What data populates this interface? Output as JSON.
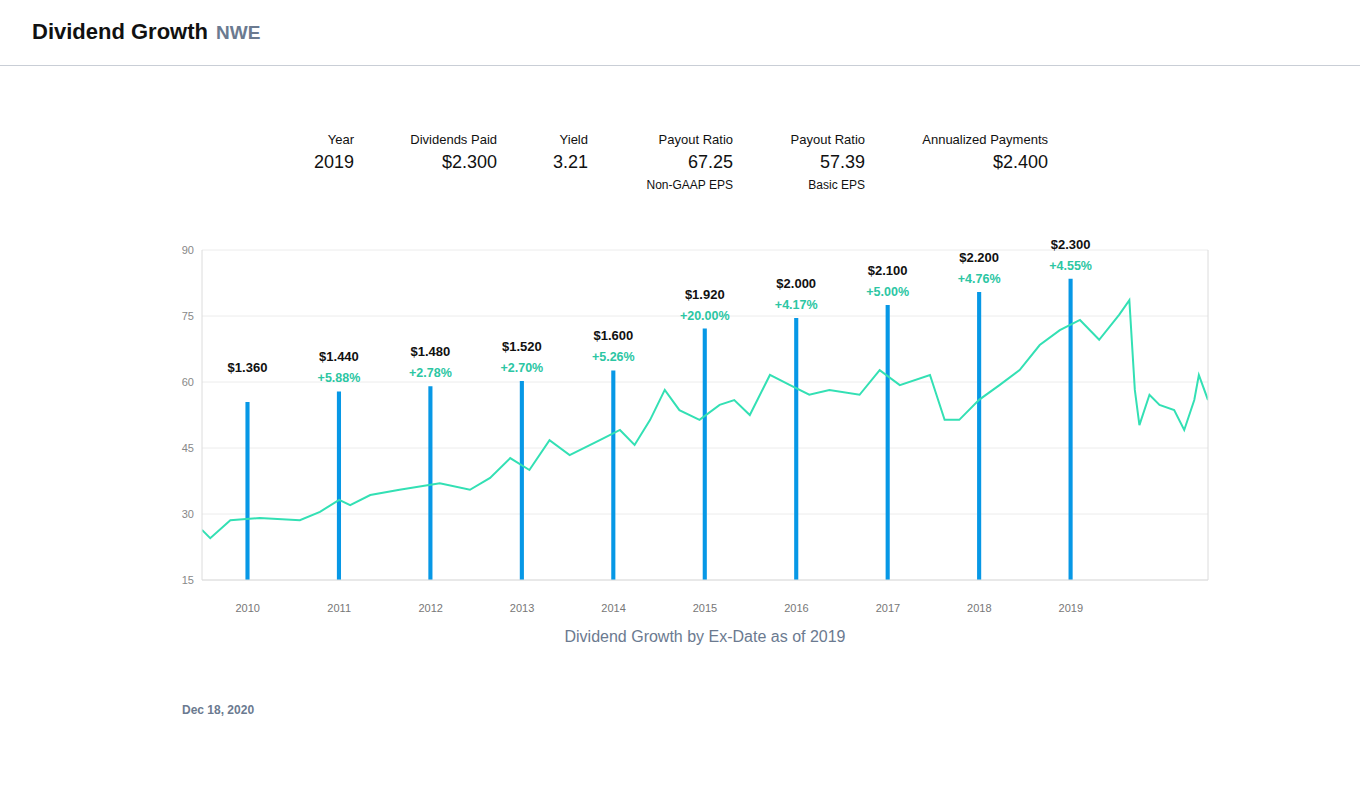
{
  "header": {
    "title": "Dividend Growth",
    "ticker": "NWE"
  },
  "stats": [
    {
      "label": "Year",
      "value": "2019"
    },
    {
      "label": "Dividends Paid",
      "value": "$2.300"
    },
    {
      "label": "Yield",
      "value": "3.21"
    },
    {
      "label": "Payout Ratio",
      "value": "67.25",
      "note": "Non-GAAP EPS"
    },
    {
      "label": "Payout Ratio",
      "value": "57.39",
      "note": "Basic EPS"
    },
    {
      "label": "Annualized Payments",
      "value": "$2.400"
    }
  ],
  "chart_data": {
    "type": "bar",
    "xlabel": "Dividend Growth by Ex-Date as of 2019",
    "xlim": [
      2009.5,
      2020.5
    ],
    "xticks": [
      2010,
      2011,
      2012,
      2013,
      2014,
      2015,
      2016,
      2017,
      2018,
      2019
    ],
    "ylim": [
      15,
      90
    ],
    "yticks": [
      15,
      30,
      45,
      60,
      75,
      90
    ],
    "y2lim": [
      0,
      2.52
    ],
    "y2ticks": [],
    "grid": true,
    "data_labels": true,
    "series": [
      {
        "type": "bar",
        "color": "#0798e6",
        "axis": "y2",
        "x": [
          2010,
          2011,
          2012,
          2013,
          2014,
          2015,
          2016,
          2017,
          2018,
          2019
        ],
        "values": [
          1.36,
          1.44,
          1.48,
          1.52,
          1.6,
          1.92,
          2.0,
          2.1,
          2.2,
          2.3
        ],
        "value_labels": [
          "$1.360",
          "$1.440",
          "$1.480",
          "$1.520",
          "$1.600",
          "$1.920",
          "$2.000",
          "$2.100",
          "$2.200",
          "$2.300"
        ],
        "growth": [
          null,
          5.88,
          2.78,
          2.7,
          5.26,
          20.0,
          4.17,
          5.0,
          4.76,
          4.55
        ],
        "growth_labels": [
          null,
          "+5.88%",
          "+2.78%",
          "+2.70%",
          "+5.26%",
          "+20.00%",
          "+4.17%",
          "+5.00%",
          "+4.76%",
          "+4.55%"
        ]
      },
      {
        "type": "line",
        "color": "#33e0b4",
        "x": [
          2009.5,
          2009.59,
          2009.81,
          2010.13,
          2010.57,
          2010.79,
          2011.0,
          2011.12,
          2011.34,
          2011.66,
          2012.1,
          2012.43,
          2012.65,
          2012.87,
          2013.08,
          2013.3,
          2013.52,
          2013.85,
          2014.07,
          2014.23,
          2014.4,
          2014.56,
          2014.72,
          2014.94,
          2015.16,
          2015.32,
          2015.49,
          2015.71,
          2015.93,
          2016.14,
          2016.36,
          2016.69,
          2016.91,
          2017.13,
          2017.46,
          2017.62,
          2017.78,
          2018.0,
          2018.22,
          2018.44,
          2018.66,
          2018.88,
          2019.1,
          2019.31,
          2019.53,
          2019.64,
          2019.7,
          2019.75,
          2019.86,
          2019.97,
          2020.13,
          2020.24,
          2020.35,
          2020.4,
          2020.5
        ],
        "values": [
          26.4,
          24.5,
          28.6,
          29.1,
          28.6,
          30.5,
          33.2,
          32.0,
          34.3,
          35.5,
          37.0,
          35.5,
          38.2,
          42.7,
          40.0,
          46.8,
          43.4,
          46.8,
          49.1,
          45.7,
          51.4,
          58.2,
          53.6,
          51.4,
          54.8,
          55.9,
          52.5,
          61.6,
          59.3,
          57.1,
          58.2,
          57.1,
          62.7,
          59.3,
          61.6,
          51.4,
          51.4,
          56.0,
          59.3,
          62.7,
          68.4,
          71.8,
          74.1,
          69.6,
          75.3,
          78.6,
          58.2,
          50.2,
          57.1,
          54.8,
          53.6,
          49.1,
          55.9,
          61.6,
          55.9
        ]
      }
    ]
  },
  "date": "Dec 18, 2020"
}
